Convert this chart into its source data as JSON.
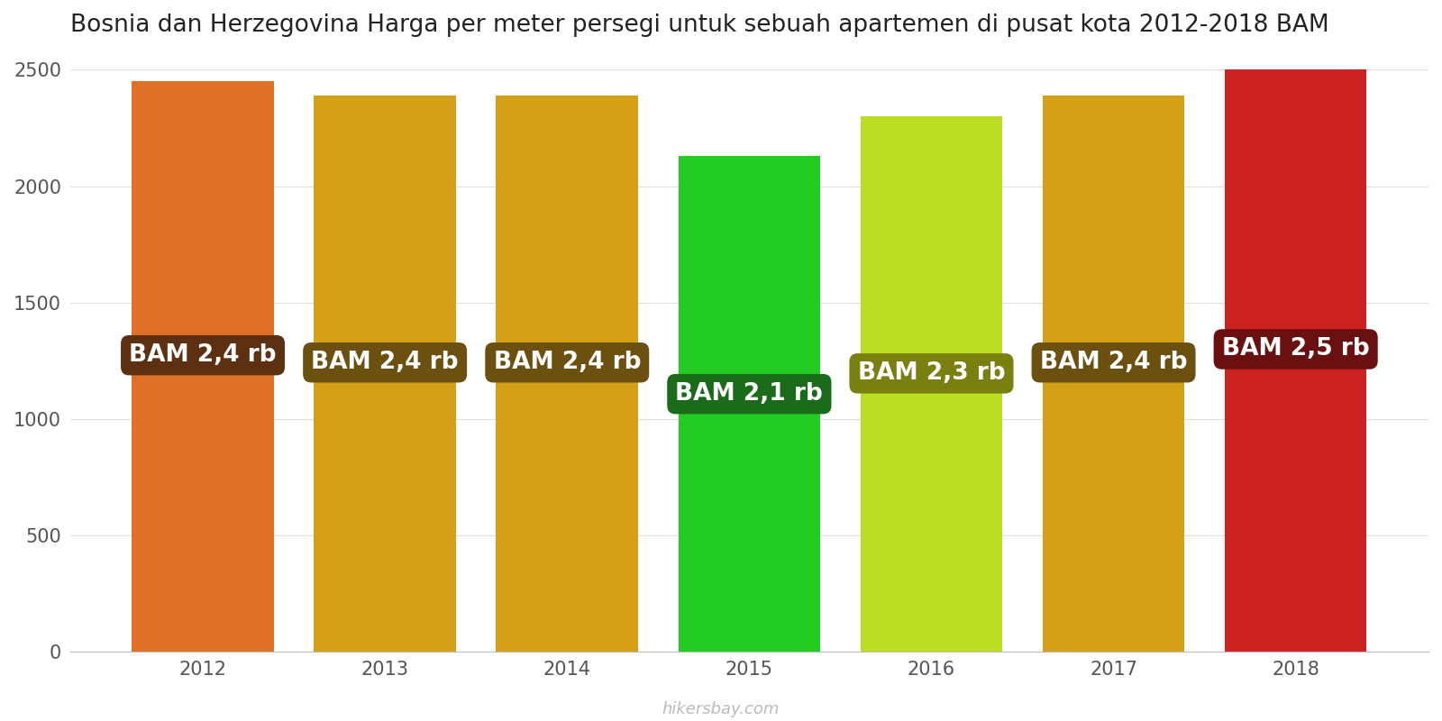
{
  "title": "Bosnia dan Herzegovina Harga per meter persegi untuk sebuah apartemen di pusat kota 2012-2018 BAM",
  "years": [
    2012,
    2013,
    2014,
    2015,
    2016,
    2017,
    2018
  ],
  "values": [
    2450,
    2390,
    2390,
    2130,
    2300,
    2390,
    2500
  ],
  "labels": [
    "BAM 2,4 rb",
    "BAM 2,4 rb",
    "BAM 2,4 rb",
    "BAM 2,1 rb",
    "BAM 2,3 rb",
    "BAM 2,4 rb",
    "BAM 2,5 rb"
  ],
  "bar_colors": [
    "#E07028",
    "#D4A017",
    "#D4A017",
    "#22CC22",
    "#BBDD22",
    "#D4A017",
    "#CC2222"
  ],
  "label_bg_colors": [
    "#5C3010",
    "#6B5010",
    "#6B5010",
    "#1A6B1A",
    "#7A8010",
    "#6B5010",
    "#6B1010"
  ],
  "label_fg_color": "#FFFFFF",
  "ylim": [
    0,
    2600
  ],
  "yticks": [
    0,
    500,
    1000,
    1500,
    2000,
    2500
  ],
  "footer": "hikersbay.com",
  "title_fontsize": 19,
  "label_fontsize": 19,
  "tick_fontsize": 15,
  "footer_fontsize": 13,
  "background_color": "#FFFFFF",
  "grid_color": "#E0E0E0",
  "bar_width": 0.78
}
